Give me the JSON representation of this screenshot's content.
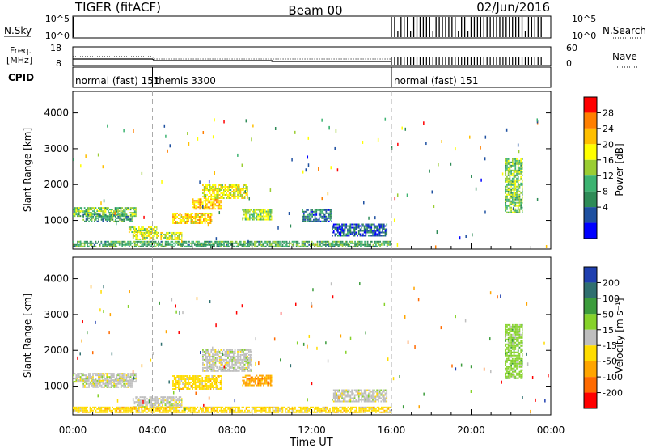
{
  "header": {
    "radar": "TIGER (fitACF)",
    "beam": "Beam 00",
    "date": "02/Jun/2016"
  },
  "strip_labels": {
    "nsky": "N.Sky",
    "nsky_ticks": [
      "10^5",
      "10^0"
    ],
    "nsearch": "N.Search",
    "nsearch_ticks": [
      "10^5",
      "10^0"
    ],
    "freq_line1": "Freq.",
    "freq_line2": "[MHz]",
    "freq_ticks": [
      "18",
      "8"
    ],
    "nave": "Nave",
    "nave_ticks": [
      "60",
      "0"
    ],
    "cpid": "CPID"
  },
  "cpid_segments": [
    {
      "label": "normal (fast)  151",
      "start": 0,
      "end": 4
    },
    {
      "label": "themis 3300",
      "start": 4,
      "end": 16
    },
    {
      "label": "normal (fast)  151",
      "start": 16,
      "end": 24
    }
  ],
  "power_colorbar": {
    "label": "Power [dB]",
    "ticks": [
      "28",
      "24",
      "20",
      "16",
      "12",
      "8",
      "4"
    ],
    "colors": [
      "#ff0000",
      "#ff7f00",
      "#ffbf00",
      "#ffff00",
      "#9acd32",
      "#3cb371",
      "#2e8b57",
      "#1e50a0",
      "#0000ff"
    ]
  },
  "velocity_colorbar": {
    "label": "Velocity [m s⁻¹]",
    "ticks": [
      "200",
      "100",
      "50",
      "15",
      "-15",
      "-50",
      "-100",
      "-200"
    ],
    "colors": [
      "#1f3faf",
      "#2f6f6f",
      "#3c9c3c",
      "#86d22a",
      "#bebebe",
      "#ffdc00",
      "#ffa500",
      "#ff6a00",
      "#ff0000"
    ]
  },
  "chart_data": {
    "type": "heatmap",
    "xlabel": "Time UT",
    "ylabel": "Slant Range [km]",
    "xlim": [
      0,
      24
    ],
    "ylim": [
      200,
      4600
    ],
    "x_ticks": [
      "00:00",
      "04:00",
      "08:00",
      "12:00",
      "16:00",
      "20:00",
      "00:00"
    ],
    "y_ticks": [
      1000,
      2000,
      3000,
      4000
    ],
    "mode_change_times": [
      4,
      16
    ],
    "power_bands": [
      {
        "t0": 0.0,
        "t1": 3.2,
        "r0": 1100,
        "r1": 1350,
        "level": 0.45
      },
      {
        "t0": 0.5,
        "t1": 3.0,
        "r0": 950,
        "r1": 1150,
        "level": 0.3
      },
      {
        "t0": 2.8,
        "t1": 4.2,
        "r0": 650,
        "r1": 800,
        "level": 0.55
      },
      {
        "t0": 3.0,
        "t1": 5.5,
        "r0": 450,
        "r1": 650,
        "level": 0.6
      },
      {
        "t0": 5.0,
        "t1": 7.0,
        "r0": 900,
        "r1": 1200,
        "level": 0.7
      },
      {
        "t0": 6.0,
        "t1": 7.5,
        "r0": 1300,
        "r1": 1600,
        "level": 0.75
      },
      {
        "t0": 6.5,
        "t1": 8.8,
        "r0": 1600,
        "r1": 2000,
        "level": 0.6
      },
      {
        "t0": 8.5,
        "t1": 10.0,
        "r0": 1000,
        "r1": 1300,
        "level": 0.5
      },
      {
        "t0": 11.5,
        "t1": 13.0,
        "r0": 950,
        "r1": 1300,
        "level": 0.2
      },
      {
        "t0": 13.0,
        "t1": 15.8,
        "r0": 550,
        "r1": 900,
        "level": 0.15
      },
      {
        "t0": 0.0,
        "t1": 16.0,
        "r0": 250,
        "r1": 400,
        "level": 0.35
      },
      {
        "t0": 21.7,
        "t1": 22.6,
        "r0": 1200,
        "r1": 2700,
        "level": 0.45
      }
    ],
    "velocity_bands": [
      {
        "t0": 0.0,
        "t1": 3.2,
        "r0": 1100,
        "r1": 1350,
        "class": 4
      },
      {
        "t0": 0.5,
        "t1": 3.0,
        "r0": 950,
        "r1": 1150,
        "class": 4
      },
      {
        "t0": 3.0,
        "t1": 5.5,
        "r0": 400,
        "r1": 700,
        "class": 4
      },
      {
        "t0": 5.0,
        "t1": 7.5,
        "r0": 900,
        "r1": 1300,
        "class": 5
      },
      {
        "t0": 6.5,
        "t1": 9.0,
        "r0": 1400,
        "r1": 2000,
        "class": 4
      },
      {
        "t0": 8.5,
        "t1": 10.0,
        "r0": 1000,
        "r1": 1300,
        "class": 6
      },
      {
        "t0": 13.0,
        "t1": 15.8,
        "r0": 550,
        "r1": 900,
        "class": 4
      },
      {
        "t0": 0.0,
        "t1": 16.0,
        "r0": 250,
        "r1": 400,
        "class": 5
      },
      {
        "t0": 21.7,
        "t1": 22.6,
        "r0": 1200,
        "r1": 2700,
        "class": 3
      }
    ]
  }
}
